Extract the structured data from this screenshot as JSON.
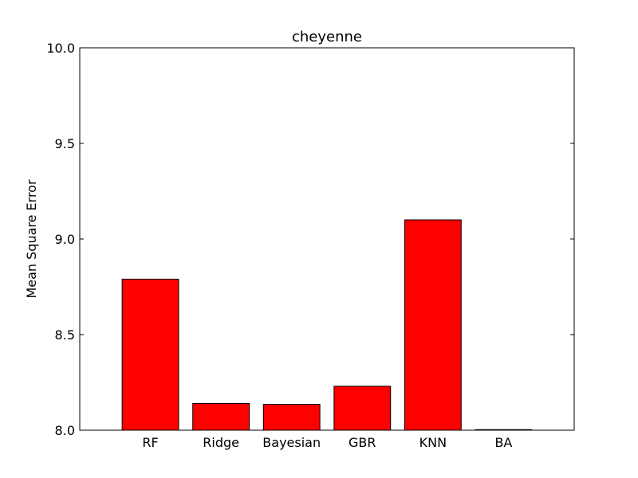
{
  "chart_data": {
    "type": "bar",
    "title": "cheyenne",
    "xlabel": "",
    "ylabel": "Mean Square Error",
    "categories": [
      "RF",
      "Ridge",
      "Bayesian",
      "GBR",
      "KNN",
      "BA"
    ],
    "values": [
      8.79,
      8.14,
      8.135,
      8.23,
      9.1,
      8.003
    ],
    "ylim": [
      8.0,
      10.0
    ],
    "yticks": [
      "8.0",
      "8.5",
      "9.0",
      "9.5",
      "10.0"
    ],
    "ytick_values": [
      8.0,
      8.5,
      9.0,
      9.5,
      10.0
    ],
    "grid": false,
    "legend": "none",
    "bar_color": "#ff0000",
    "edge_color": "#000000"
  }
}
